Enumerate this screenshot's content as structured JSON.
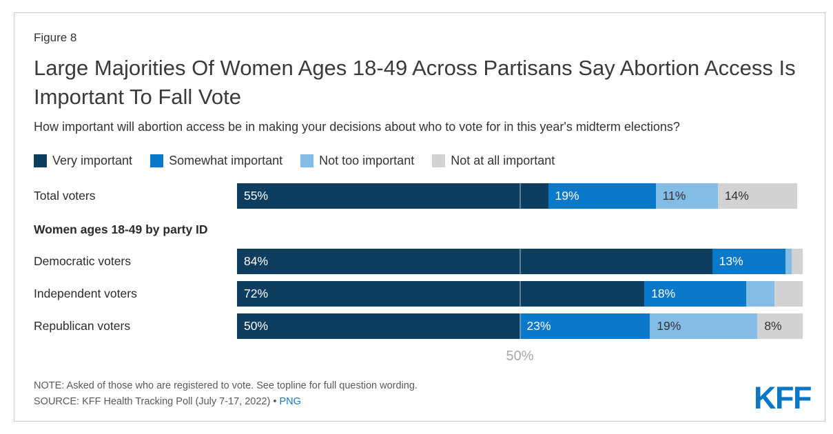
{
  "figure_label": "Figure 8",
  "title": "Large Majorities Of Women Ages 18-49 Across Partisans Say Abortion Access Is Important To Fall Vote",
  "subtitle": "How important will abortion access be in making your decisions about who to vote for in this year's midterm elections?",
  "chart_data": {
    "type": "bar",
    "orientation": "horizontal",
    "stacked": true,
    "categories": [
      "Total voters",
      "Democratic voters",
      "Independent voters",
      "Republican voters"
    ],
    "series": [
      {
        "name": "Very important",
        "color": "#0d3e5f",
        "label_text_color": "#ffffff",
        "values": [
          55,
          84,
          72,
          50
        ]
      },
      {
        "name": "Somewhat important",
        "color": "#0b79c9",
        "label_text_color": "#ffffff",
        "values": [
          19,
          13,
          18,
          23
        ]
      },
      {
        "name": "Not too important",
        "color": "#83bde5",
        "label_text_color": "#333333",
        "values": [
          11,
          1,
          5,
          19
        ]
      },
      {
        "name": "Not at all important",
        "color": "#d2d2d2",
        "label_text_color": "#333333",
        "values": [
          14,
          2,
          5,
          8
        ]
      }
    ],
    "section_header": {
      "text": "Women ages 18-49 by party ID",
      "before_index": 1
    },
    "data_label_suffix": "%",
    "data_label_min": 8,
    "x_axis": {
      "min": 0,
      "max": 100,
      "tick_value": 50,
      "tick_label": "50%",
      "gridline": true
    },
    "legend_position": "top"
  },
  "footer": {
    "note": "NOTE: Asked of those who are registered to vote. See topline for full question wording.",
    "source_prefix": "SOURCE: KFF Health Tracking Poll (July 7-17, 2022) • ",
    "source_link_label": "PNG",
    "logo_text": "KFF"
  },
  "colors": {
    "accent_link": "#0d77c8",
    "logo_blue": "#0b77c5",
    "text_dark": "#333333",
    "text_muted": "#58595b",
    "axis_label_gray": "#a8a8a8",
    "card_border": "#c9c9c9",
    "gridline_overlay": "rgba(255,255,255,0.35)"
  }
}
